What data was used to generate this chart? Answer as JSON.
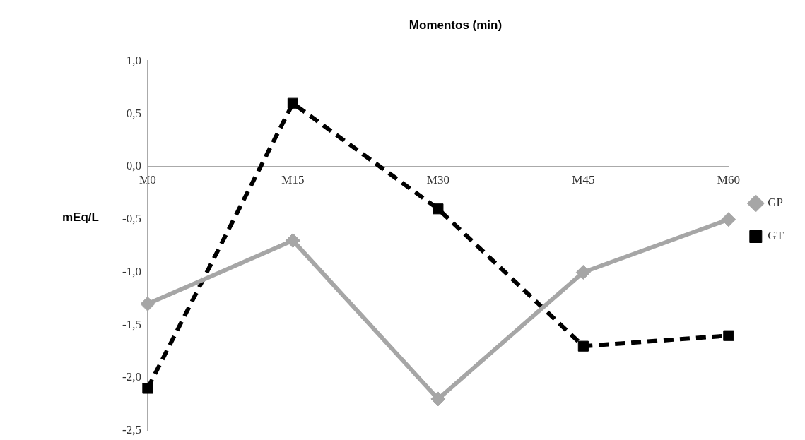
{
  "chart_data": {
    "type": "line",
    "title": "Momentos (min)",
    "ylabel": "mEq/L",
    "categories": [
      "M0",
      "M15",
      "M30",
      "M45",
      "M60"
    ],
    "series": [
      {
        "name": "GP",
        "color": "#a6a6a6",
        "values": [
          -1.3,
          -0.7,
          -2.2,
          -1.0,
          -0.5
        ],
        "marker": "diamond",
        "line_style": "solid"
      },
      {
        "name": "GT",
        "color": "#000000",
        "values": [
          -2.1,
          0.6,
          -0.4,
          -1.7,
          -1.6
        ],
        "marker": "square",
        "line_style": "dashed"
      }
    ],
    "ylim": [
      -2.5,
      1.0
    ],
    "yticks": [
      {
        "value": -2.5,
        "label": "-2,5"
      },
      {
        "value": -2,
        "label": "-2,0"
      },
      {
        "value": -1.5,
        "label": "-1,5"
      },
      {
        "value": -1,
        "label": "-1,0"
      },
      {
        "value": -0.5,
        "label": "-0,5"
      },
      {
        "value": 0,
        "label": "0,0"
      },
      {
        "value": 0.5,
        "label": "0,5"
      },
      {
        "value": 1,
        "label": "1,0"
      }
    ],
    "grid": false,
    "legend": "right"
  }
}
